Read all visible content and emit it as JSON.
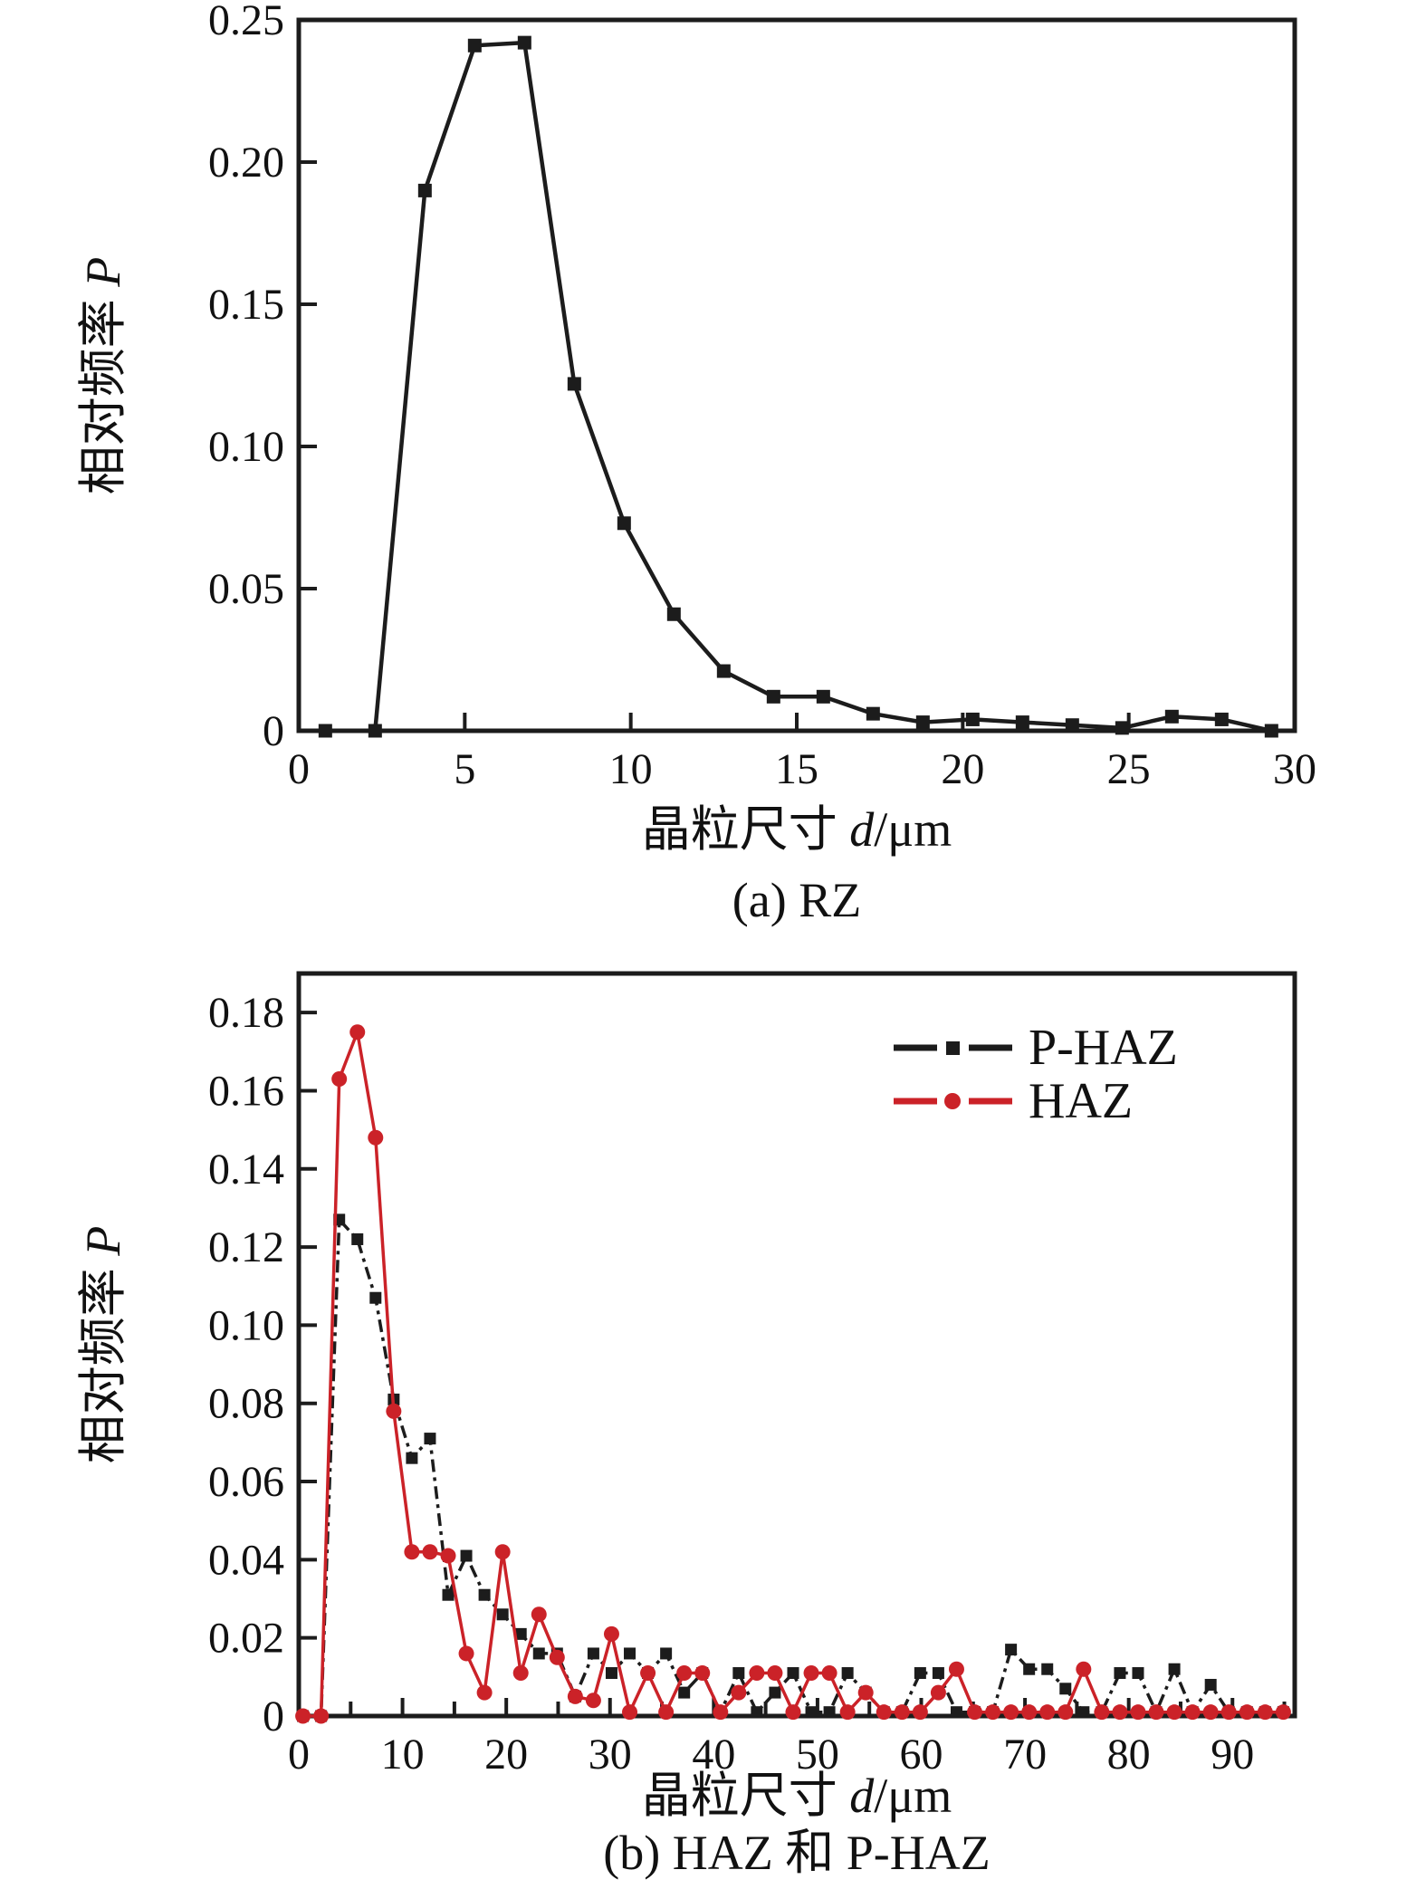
{
  "page": {
    "background": "#ffffff",
    "text_color": "#111111"
  },
  "colors": {
    "black_series": "#1c1c1c",
    "red_series": "#cb2228",
    "axis": "#1c1c1c"
  },
  "chart_data": [
    {
      "id": "chart-a",
      "type": "line",
      "caption": "(a) RZ",
      "xlabel_text": "晶粒尺寸 ",
      "xlabel_var": "d",
      "xlabel_unit": "/μm",
      "ylabel_text": "相对频率 ",
      "ylabel_var": "P",
      "xlim": [
        0,
        30
      ],
      "ylim": [
        0,
        0.25
      ],
      "grid": false,
      "xticks": [
        0,
        5,
        10,
        15,
        20,
        25,
        30
      ],
      "xtick_labels": [
        "0",
        "5",
        "10",
        "15",
        "20",
        "25",
        "30"
      ],
      "xminor": [],
      "yticks": [
        0,
        0.05,
        0.1,
        0.15,
        0.2,
        0.25
      ],
      "ytick_labels": [
        "0",
        "0.05",
        "0.10",
        "0.15",
        "0.20",
        "0.25"
      ],
      "series": [
        {
          "name": "RZ",
          "color": "#1c1c1c",
          "marker": "square",
          "marker_size": 15,
          "line_width": 4.5,
          "dash": "",
          "x": [
            0.8,
            2.3,
            3.8,
            5.3,
            6.8,
            8.3,
            9.8,
            11.3,
            12.8,
            14.3,
            15.8,
            17.3,
            18.8,
            20.3,
            21.8,
            23.3,
            24.8,
            26.3,
            27.8,
            29.3
          ],
          "y": [
            0,
            0,
            0.19,
            0.241,
            0.242,
            0.122,
            0.073,
            0.041,
            0.021,
            0.012,
            0.012,
            0.006,
            0.003,
            0.004,
            0.003,
            0.002,
            0.001,
            0.005,
            0.004,
            0.0
          ]
        }
      ]
    },
    {
      "id": "chart-b",
      "type": "line",
      "caption": "(b) HAZ 和 P-HAZ",
      "xlabel_text": "晶粒尺寸 ",
      "xlabel_var": "d",
      "xlabel_unit": "/μm",
      "ylabel_text": "相对频率 ",
      "ylabel_var": "P",
      "xlim": [
        0,
        96
      ],
      "ylim": [
        0,
        0.19
      ],
      "grid": false,
      "xticks": [
        0,
        10,
        20,
        30,
        40,
        50,
        60,
        70,
        80,
        90
      ],
      "xtick_labels": [
        "0",
        "10",
        "20",
        "30",
        "40",
        "50",
        "60",
        "70",
        "80",
        "90"
      ],
      "xminor": [
        5,
        15,
        25,
        35,
        45,
        55,
        65,
        75,
        85,
        95
      ],
      "yticks": [
        0,
        0.02,
        0.04,
        0.06,
        0.08,
        0.1,
        0.12,
        0.14,
        0.16,
        0.18
      ],
      "ytick_labels": [
        "0",
        "0.02",
        "0.04",
        "0.06",
        "0.08",
        "0.10",
        "0.12",
        "0.14",
        "0.16",
        "0.18"
      ],
      "legend": [
        {
          "name": "P-HAZ",
          "color": "#1c1c1c",
          "marker": "square"
        },
        {
          "name": "HAZ",
          "color": "#cb2228",
          "marker": "circle"
        }
      ],
      "legend_position": "top-right",
      "series": [
        {
          "name": "P-HAZ",
          "color": "#1c1c1c",
          "marker": "square",
          "marker_size": 13,
          "line_width": 3.5,
          "dash": "14 6 4 6",
          "x": [
            0.4,
            2.15,
            3.9,
            5.65,
            7.4,
            9.15,
            10.9,
            12.65,
            14.4,
            16.15,
            17.9,
            19.65,
            21.4,
            23.15,
            24.9,
            26.65,
            28.4,
            30.15,
            31.9,
            33.65,
            35.4,
            37.15,
            38.9,
            40.65,
            42.4,
            44.15,
            45.9,
            47.65,
            49.4,
            51.15,
            52.9,
            54.65,
            56.4,
            58.15,
            59.9,
            61.65,
            63.4,
            65.15,
            66.9,
            68.65,
            70.4,
            72.15,
            73.9,
            75.65,
            77.4,
            79.15,
            80.9,
            82.65,
            84.4,
            86.15,
            87.9,
            89.65,
            91.4,
            93.15,
            94.9
          ],
          "y": [
            0,
            0,
            0.127,
            0.122,
            0.107,
            0.081,
            0.066,
            0.071,
            0.031,
            0.041,
            0.031,
            0.026,
            0.021,
            0.016,
            0.016,
            0.005,
            0.016,
            0.011,
            0.016,
            0.011,
            0.016,
            0.006,
            0.011,
            0.001,
            0.011,
            0.001,
            0.006,
            0.011,
            0.001,
            0.001,
            0.011,
            0.006,
            0.001,
            0.001,
            0.011,
            0.011,
            0.001,
            0.001,
            0.001,
            0.017,
            0.012,
            0.012,
            0.007,
            0.001,
            0.001,
            0.011,
            0.011,
            0.001,
            0.012,
            0.001,
            0.008,
            0.001,
            0.001,
            0.001,
            0.001
          ]
        },
        {
          "name": "HAZ",
          "color": "#cb2228",
          "marker": "circle",
          "marker_size": 17,
          "line_width": 3.5,
          "dash": "",
          "x": [
            0.4,
            2.15,
            3.9,
            5.65,
            7.4,
            9.15,
            10.9,
            12.65,
            14.4,
            16.15,
            17.9,
            19.65,
            21.4,
            23.15,
            24.9,
            26.65,
            28.4,
            30.15,
            31.9,
            33.65,
            35.4,
            37.15,
            38.9,
            40.65,
            42.4,
            44.15,
            45.9,
            47.65,
            49.4,
            51.15,
            52.9,
            54.65,
            56.4,
            58.15,
            59.9,
            61.65,
            63.4,
            65.15,
            66.9,
            68.65,
            70.4,
            72.15,
            73.9,
            75.65,
            77.4,
            79.15,
            80.9,
            82.65,
            84.4,
            86.15,
            87.9,
            89.65,
            91.4,
            93.15,
            94.9
          ],
          "y": [
            0,
            0,
            0.163,
            0.175,
            0.148,
            0.078,
            0.042,
            0.042,
            0.041,
            0.016,
            0.006,
            0.042,
            0.011,
            0.026,
            0.015,
            0.005,
            0.004,
            0.021,
            0.001,
            0.011,
            0.001,
            0.011,
            0.011,
            0.001,
            0.006,
            0.011,
            0.011,
            0.001,
            0.011,
            0.011,
            0.001,
            0.006,
            0.001,
            0.001,
            0.001,
            0.006,
            0.012,
            0.001,
            0.001,
            0.001,
            0.001,
            0.001,
            0.001,
            0.012,
            0.001,
            0.001,
            0.001,
            0.001,
            0.001,
            0.001,
            0.001,
            0.001,
            0.001,
            0.001,
            0.001
          ]
        }
      ]
    }
  ]
}
